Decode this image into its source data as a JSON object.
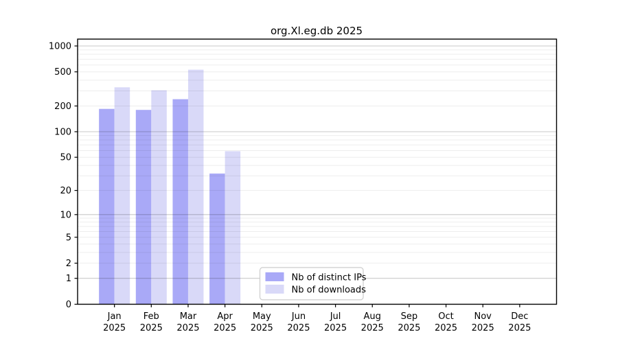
{
  "chart_data": {
    "type": "bar",
    "title": "org.Xl.eg.db 2025",
    "months": [
      "Jan",
      "Feb",
      "Mar",
      "Apr",
      "May",
      "Jun",
      "Jul",
      "Aug",
      "Sep",
      "Oct",
      "Nov",
      "Dec"
    ],
    "year": "2025",
    "series": [
      {
        "name": "Nb of distinct IPs",
        "color": "#a9a9f7",
        "values": [
          185,
          180,
          240,
          32,
          null,
          null,
          null,
          null,
          null,
          null,
          null,
          null
        ]
      },
      {
        "name": "Nb of downloads",
        "color": "#d9d9f8",
        "values": [
          330,
          305,
          530,
          59,
          null,
          null,
          null,
          null,
          null,
          null,
          null,
          null
        ]
      }
    ],
    "y_ticks": [
      0,
      1,
      2,
      5,
      10,
      20,
      50,
      100,
      200,
      500,
      1000
    ],
    "ylim": [
      0,
      1000
    ],
    "y_scale": "log10(1+x)",
    "grid": "horizontal major (decades) + minor lines",
    "legend_position": "inside plot, bottom center-left",
    "axis_color": "#000000",
    "major_grid_color": "#c6c6c6",
    "minor_grid_color": "#ededed",
    "legend_border_color": "#cccccc"
  }
}
